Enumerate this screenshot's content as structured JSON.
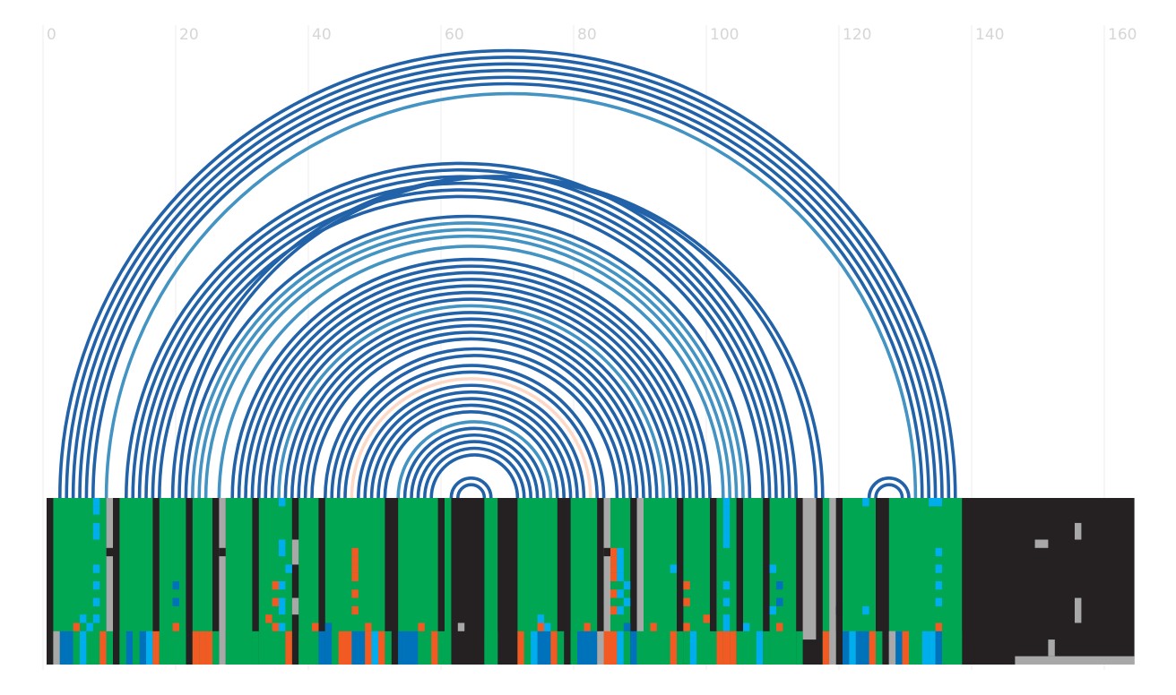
{
  "chart_data": {
    "type": "arc-diagram",
    "title": "",
    "xlabel": "",
    "ylabel": "",
    "xlim": [
      0,
      164
    ],
    "grid": true,
    "x_ticks": [
      0,
      20,
      40,
      60,
      80,
      100,
      120,
      140,
      160
    ],
    "x_tick_labels": [
      "0",
      "20",
      "40",
      "60",
      "80",
      "100",
      "120",
      "140",
      "160"
    ],
    "sequence_length": 138,
    "colors": {
      "arc_dark": "#2262a8",
      "arc_light": "#4393c3",
      "arc_pale": "#fcd9c7",
      "track_background": "#252122",
      "region_green": "#00a651",
      "mark_gray": "#a8a8a8",
      "mark_orange": "#f15a22",
      "mark_blue": "#0072bc",
      "mark_cyan": "#00aeef",
      "grid": "#eeeeee"
    },
    "arcs": [
      {
        "start": 2,
        "end": 137,
        "tone": "dark"
      },
      {
        "start": 3,
        "end": 136,
        "tone": "dark"
      },
      {
        "start": 4,
        "end": 135,
        "tone": "dark"
      },
      {
        "start": 5,
        "end": 134,
        "tone": "dark"
      },
      {
        "start": 6,
        "end": 133,
        "tone": "dark"
      },
      {
        "start": 7,
        "end": 132,
        "tone": "dark"
      },
      {
        "start": 9,
        "end": 131,
        "tone": "light"
      },
      {
        "start": 12,
        "end": 113,
        "tone": "dark"
      },
      {
        "start": 13,
        "end": 112,
        "tone": "dark"
      },
      {
        "start": 14,
        "end": 111,
        "tone": "dark"
      },
      {
        "start": 15,
        "end": 110,
        "tone": "dark"
      },
      {
        "start": 16,
        "end": 109,
        "tone": "dark"
      },
      {
        "start": 17,
        "end": 108,
        "tone": "dark"
      },
      {
        "start": 19,
        "end": 116,
        "tone": "dark"
      },
      {
        "start": 20,
        "end": 117,
        "tone": "dark"
      },
      {
        "start": 21,
        "end": 106,
        "tone": "dark"
      },
      {
        "start": 22,
        "end": 105,
        "tone": "light"
      },
      {
        "start": 23,
        "end": 104,
        "tone": "light"
      },
      {
        "start": 24,
        "end": 103,
        "tone": "light"
      },
      {
        "start": 26,
        "end": 102,
        "tone": "light"
      },
      {
        "start": 28,
        "end": 100,
        "tone": "dark"
      },
      {
        "start": 29,
        "end": 99,
        "tone": "dark"
      },
      {
        "start": 30,
        "end": 98,
        "tone": "dark"
      },
      {
        "start": 31,
        "end": 97,
        "tone": "dark"
      },
      {
        "start": 32,
        "end": 96,
        "tone": "dark"
      },
      {
        "start": 33,
        "end": 95,
        "tone": "dark"
      },
      {
        "start": 34,
        "end": 94,
        "tone": "dark"
      },
      {
        "start": 35,
        "end": 93,
        "tone": "light"
      },
      {
        "start": 36,
        "end": 92,
        "tone": "dark"
      },
      {
        "start": 37,
        "end": 91,
        "tone": "dark"
      },
      {
        "start": 38,
        "end": 90,
        "tone": "dark"
      },
      {
        "start": 39,
        "end": 89,
        "tone": "dark"
      },
      {
        "start": 40,
        "end": 88,
        "tone": "dark"
      },
      {
        "start": 42,
        "end": 87,
        "tone": "dark"
      },
      {
        "start": 43,
        "end": 86,
        "tone": "dark"
      },
      {
        "start": 44,
        "end": 84,
        "tone": "dark"
      },
      {
        "start": 45,
        "end": 83,
        "tone": "dark"
      },
      {
        "start": 46,
        "end": 82,
        "tone": "pale"
      },
      {
        "start": 47,
        "end": 81,
        "tone": "dark"
      },
      {
        "start": 48,
        "end": 80,
        "tone": "dark"
      },
      {
        "start": 49,
        "end": 79,
        "tone": "dark"
      },
      {
        "start": 50,
        "end": 78,
        "tone": "dark"
      },
      {
        "start": 51,
        "end": 77,
        "tone": "dark"
      },
      {
        "start": 53,
        "end": 76,
        "tone": "light"
      },
      {
        "start": 54,
        "end": 75,
        "tone": "dark"
      },
      {
        "start": 55,
        "end": 74,
        "tone": "dark"
      },
      {
        "start": 56,
        "end": 73,
        "tone": "dark"
      },
      {
        "start": 57,
        "end": 72,
        "tone": "dark"
      },
      {
        "start": 58,
        "end": 71,
        "tone": "dark"
      },
      {
        "start": 61,
        "end": 67,
        "tone": "dark"
      },
      {
        "start": 62,
        "end": 66,
        "tone": "dark"
      },
      {
        "start": 124,
        "end": 130,
        "tone": "dark"
      },
      {
        "start": 125,
        "end": 129,
        "tone": "dark"
      }
    ],
    "track": {
      "rows": 20,
      "green_regions": [
        [
          1,
          9
        ],
        [
          11,
          16
        ],
        [
          17,
          21
        ],
        [
          22,
          25
        ],
        [
          27,
          31
        ],
        [
          32,
          37
        ],
        [
          38,
          41
        ],
        [
          42,
          51
        ],
        [
          53,
          59
        ],
        [
          60,
          61
        ],
        [
          66,
          68
        ],
        [
          71,
          77
        ],
        [
          79,
          83
        ],
        [
          84,
          88
        ],
        [
          89,
          95
        ],
        [
          96,
          100
        ],
        [
          101,
          104
        ],
        [
          105,
          108
        ],
        [
          109,
          113
        ],
        [
          117,
          119
        ],
        [
          120,
          125
        ],
        [
          127,
          138
        ]
      ],
      "gray_columns": [
        [
          9,
          0,
          19
        ],
        [
          26,
          0,
          19
        ],
        [
          84,
          0,
          19
        ],
        [
          89,
          0,
          19
        ],
        [
          114,
          0,
          16
        ],
        [
          115,
          0,
          16
        ],
        [
          118,
          0,
          19
        ],
        [
          37,
          5,
          7
        ],
        [
          37,
          12,
          13
        ],
        [
          62,
          15,
          15
        ],
        [
          127,
          16,
          19
        ]
      ],
      "black_marks": [
        [
          9,
          6
        ],
        [
          26,
          6
        ],
        [
          84,
          6
        ],
        [
          119,
          13
        ]
      ],
      "bottom_colors": [
        [
          1,
          "gray"
        ],
        [
          2,
          "blue"
        ],
        [
          3,
          "blue"
        ],
        [
          4,
          "green"
        ],
        [
          5,
          "cyan"
        ],
        [
          6,
          "green"
        ],
        [
          7,
          "green"
        ],
        [
          8,
          "orange"
        ],
        [
          9,
          "green"
        ],
        [
          11,
          "green"
        ],
        [
          12,
          "blue"
        ],
        [
          13,
          "green"
        ],
        [
          14,
          "blue"
        ],
        [
          15,
          "cyan"
        ],
        [
          16,
          "orange"
        ],
        [
          17,
          "green"
        ],
        [
          18,
          "green"
        ],
        [
          19,
          "green"
        ],
        [
          20,
          "green"
        ],
        [
          22,
          "orange"
        ],
        [
          23,
          "orange"
        ],
        [
          24,
          "orange"
        ],
        [
          25,
          "green"
        ],
        [
          27,
          "green"
        ],
        [
          28,
          "green"
        ],
        [
          29,
          "green"
        ],
        [
          30,
          "green"
        ],
        [
          31,
          "green"
        ],
        [
          32,
          "green"
        ],
        [
          33,
          "green"
        ],
        [
          34,
          "green"
        ],
        [
          35,
          "green"
        ],
        [
          36,
          "orange"
        ],
        [
          38,
          "green"
        ],
        [
          39,
          "green"
        ],
        [
          40,
          "green"
        ],
        [
          41,
          "blue"
        ],
        [
          42,
          "blue"
        ],
        [
          43,
          "green"
        ],
        [
          44,
          "orange"
        ],
        [
          45,
          "orange"
        ],
        [
          46,
          "blue"
        ],
        [
          47,
          "blue"
        ],
        [
          48,
          "orange"
        ],
        [
          49,
          "cyan"
        ],
        [
          50,
          "orange"
        ],
        [
          51,
          "green"
        ],
        [
          53,
          "blue"
        ],
        [
          54,
          "blue"
        ],
        [
          55,
          "blue"
        ],
        [
          56,
          "green"
        ],
        [
          57,
          "green"
        ],
        [
          58,
          "orange"
        ],
        [
          59,
          "green"
        ],
        [
          60,
          "green"
        ],
        [
          66,
          "green"
        ],
        [
          67,
          "green"
        ],
        [
          71,
          "orange"
        ],
        [
          72,
          "green"
        ],
        [
          73,
          "cyan"
        ],
        [
          74,
          "blue"
        ],
        [
          75,
          "blue"
        ],
        [
          76,
          "orange"
        ],
        [
          77,
          "green"
        ],
        [
          79,
          "green"
        ],
        [
          80,
          "blue"
        ],
        [
          81,
          "blue"
        ],
        [
          82,
          "blue"
        ],
        [
          83,
          "gray"
        ],
        [
          84,
          "orange"
        ],
        [
          85,
          "orange"
        ],
        [
          86,
          "cyan"
        ],
        [
          87,
          "green"
        ],
        [
          88,
          "blue"
        ],
        [
          89,
          "green"
        ],
        [
          90,
          "green"
        ],
        [
          91,
          "green"
        ],
        [
          92,
          "green"
        ],
        [
          93,
          "green"
        ],
        [
          94,
          "orange"
        ],
        [
          95,
          "green"
        ],
        [
          96,
          "green"
        ],
        [
          97,
          "cyan"
        ],
        [
          98,
          "green"
        ],
        [
          99,
          "green"
        ],
        [
          100,
          "green"
        ],
        [
          101,
          "orange"
        ],
        [
          102,
          "orange"
        ],
        [
          103,
          "orange"
        ],
        [
          104,
          "green"
        ],
        [
          105,
          "green"
        ],
        [
          106,
          "green"
        ],
        [
          107,
          "cyan"
        ],
        [
          108,
          "green"
        ],
        [
          109,
          "green"
        ],
        [
          110,
          "green"
        ],
        [
          111,
          "green"
        ],
        [
          112,
          "green"
        ],
        [
          113,
          "green"
        ],
        [
          117,
          "orange"
        ],
        [
          118,
          "gray"
        ],
        [
          120,
          "blue"
        ],
        [
          121,
          "cyan"
        ],
        [
          122,
          "blue"
        ],
        [
          123,
          "blue"
        ],
        [
          124,
          "orange"
        ],
        [
          125,
          "green"
        ],
        [
          127,
          "gray"
        ],
        [
          128,
          "blue"
        ],
        [
          129,
          "orange"
        ],
        [
          130,
          "green"
        ],
        [
          131,
          "green"
        ],
        [
          132,
          "cyan"
        ],
        [
          133,
          "cyan"
        ],
        [
          134,
          "blue"
        ],
        [
          135,
          "green"
        ],
        [
          136,
          "green"
        ],
        [
          137,
          "green"
        ]
      ],
      "dot_marks": [
        [
          7,
          0,
          "cyan"
        ],
        [
          7,
          1,
          "cyan"
        ],
        [
          7,
          3,
          "cyan"
        ],
        [
          7,
          4,
          "cyan"
        ],
        [
          7,
          8,
          "cyan"
        ],
        [
          7,
          10,
          "cyan"
        ],
        [
          7,
          12,
          "cyan"
        ],
        [
          7,
          14,
          "cyan"
        ],
        [
          6,
          15,
          "cyan"
        ],
        [
          4,
          15,
          "orange"
        ],
        [
          5,
          14,
          "cyan"
        ],
        [
          19,
          10,
          "blue"
        ],
        [
          19,
          12,
          "blue"
        ],
        [
          19,
          15,
          "orange"
        ],
        [
          35,
          0,
          "cyan"
        ],
        [
          35,
          5,
          "cyan"
        ],
        [
          35,
          6,
          "cyan"
        ],
        [
          36,
          8,
          "cyan"
        ],
        [
          35,
          10,
          "cyan"
        ],
        [
          34,
          10,
          "orange"
        ],
        [
          34,
          12,
          "orange"
        ],
        [
          35,
          12,
          "cyan"
        ],
        [
          35,
          13,
          "cyan"
        ],
        [
          33,
          14,
          "orange"
        ],
        [
          34,
          15,
          "orange"
        ],
        [
          35,
          15,
          "cyan"
        ],
        [
          40,
          15,
          "orange"
        ],
        [
          46,
          6,
          "orange"
        ],
        [
          46,
          7,
          "orange"
        ],
        [
          46,
          8,
          "orange"
        ],
        [
          46,
          9,
          "orange"
        ],
        [
          46,
          11,
          "orange"
        ],
        [
          46,
          13,
          "orange"
        ],
        [
          42,
          15,
          "blue"
        ],
        [
          48,
          15,
          "orange"
        ],
        [
          56,
          15,
          "orange"
        ],
        [
          74,
          14,
          "cyan"
        ],
        [
          74,
          15,
          "orange"
        ],
        [
          75,
          15,
          "cyan"
        ],
        [
          81,
          15,
          "orange"
        ],
        [
          85,
          6,
          "orange"
        ],
        [
          85,
          7,
          "orange"
        ],
        [
          85,
          8,
          "orange"
        ],
        [
          85,
          9,
          "orange"
        ],
        [
          86,
          6,
          "cyan"
        ],
        [
          86,
          7,
          "cyan"
        ],
        [
          86,
          8,
          "cyan"
        ],
        [
          86,
          9,
          "cyan"
        ],
        [
          87,
          10,
          "cyan"
        ],
        [
          85,
          11,
          "orange"
        ],
        [
          86,
          11,
          "cyan"
        ],
        [
          87,
          12,
          "cyan"
        ],
        [
          85,
          13,
          "orange"
        ],
        [
          86,
          13,
          "cyan"
        ],
        [
          87,
          15,
          "blue"
        ],
        [
          91,
          15,
          "orange"
        ],
        [
          94,
          8,
          "cyan"
        ],
        [
          96,
          10,
          "orange"
        ],
        [
          96,
          12,
          "orange"
        ],
        [
          96,
          15,
          "orange"
        ],
        [
          99,
          14,
          "orange"
        ],
        [
          102,
          0,
          "cyan"
        ],
        [
          102,
          1,
          "cyan"
        ],
        [
          102,
          2,
          "cyan"
        ],
        [
          102,
          3,
          "cyan"
        ],
        [
          102,
          4,
          "cyan"
        ],
        [
          102,
          5,
          "cyan"
        ],
        [
          102,
          10,
          "cyan"
        ],
        [
          102,
          12,
          "cyan"
        ],
        [
          102,
          14,
          "cyan"
        ],
        [
          102,
          15,
          "cyan"
        ],
        [
          105,
          15,
          "cyan"
        ],
        [
          109,
          8,
          "cyan"
        ],
        [
          110,
          10,
          "blue"
        ],
        [
          110,
          12,
          "blue"
        ],
        [
          109,
          13,
          "cyan"
        ],
        [
          110,
          15,
          "orange"
        ],
        [
          123,
          0,
          "cyan"
        ],
        [
          123,
          13,
          "cyan"
        ],
        [
          133,
          0,
          "cyan"
        ],
        [
          134,
          0,
          "cyan"
        ],
        [
          134,
          6,
          "cyan"
        ],
        [
          134,
          8,
          "cyan"
        ],
        [
          134,
          10,
          "cyan"
        ],
        [
          134,
          12,
          "cyan"
        ],
        [
          134,
          15,
          "orange"
        ]
      ],
      "gray_marks": [
        [
          149,
          5,
          150,
          5
        ],
        [
          155,
          3,
          155,
          4
        ],
        [
          155,
          12,
          155,
          14
        ],
        [
          151,
          17,
          151,
          18
        ],
        [
          146,
          19,
          163,
          19
        ]
      ]
    }
  }
}
